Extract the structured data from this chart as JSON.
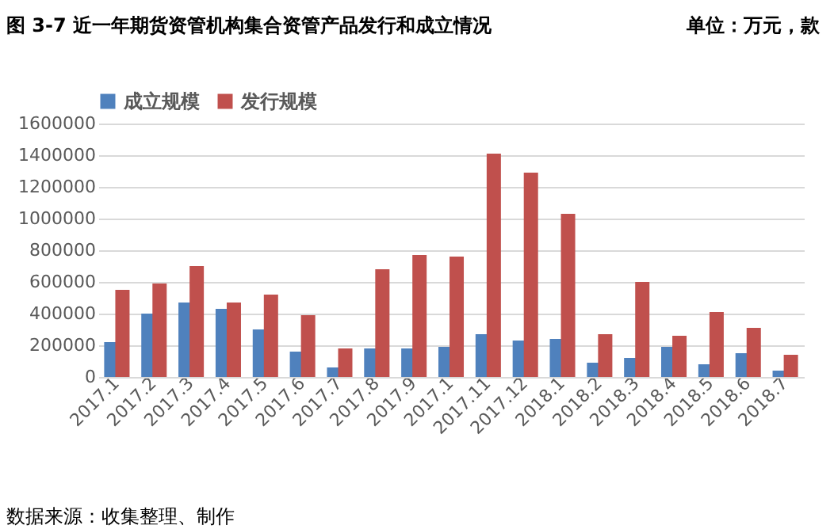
{
  "chart_data": {
    "type": "bar",
    "title": "图 3-7   近一年期货资管机构集合资管产品发行和成立情况",
    "categories": [
      "2017.1",
      "2017.2",
      "2017.3",
      "2017.4",
      "2017.5",
      "2017.6",
      "2017.7",
      "2017.8",
      "2017.9",
      "2017.1",
      "2017.11",
      "2017.12",
      "2018.1",
      "2018.2",
      "2018.3",
      "2018.4",
      "2018.5",
      "2018.6",
      "2018.7"
    ],
    "series": [
      {
        "name": "成立规模",
        "color": "#4f81bd",
        "values": [
          220000,
          400000,
          470000,
          430000,
          300000,
          160000,
          60000,
          180000,
          180000,
          190000,
          270000,
          230000,
          240000,
          90000,
          120000,
          190000,
          80000,
          150000,
          40000
        ]
      },
      {
        "name": "发行规模",
        "color": "#c0504d",
        "values": [
          550000,
          590000,
          700000,
          470000,
          520000,
          390000,
          180000,
          680000,
          770000,
          760000,
          1410000,
          1290000,
          1030000,
          270000,
          600000,
          260000,
          410000,
          310000,
          140000
        ]
      }
    ],
    "ylim": [
      0,
      1600000
    ],
    "yticks": [
      0,
      200000,
      400000,
      600000,
      800000,
      1000000,
      1200000,
      1400000,
      1600000
    ],
    "grid": "y",
    "legend": "top",
    "annotations": [
      "单位：万元，款",
      "数据来源：收集整理、制作"
    ]
  }
}
